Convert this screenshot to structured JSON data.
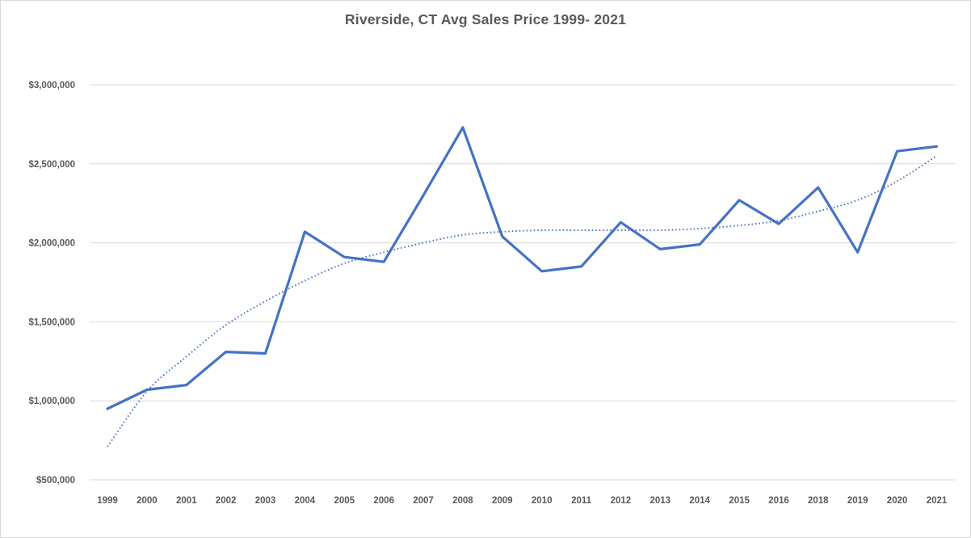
{
  "chart": {
    "title": "Riverside, CT Avg Sales Price 1999- 2021",
    "colors": {
      "line": "#4472C4",
      "trendline": "#4472C4",
      "gridline": "#d9d9d9",
      "border": "#d9d9d9",
      "text": "#595959",
      "background": "#ffffff"
    }
  },
  "chart_data": {
    "type": "line",
    "title": "Riverside, CT Avg Sales Price 1999- 2021",
    "xlabel": "",
    "ylabel": "",
    "ylim": [
      500000,
      3000000
    ],
    "ytick_interval": 500000,
    "ytick_values": [
      500000,
      1000000,
      1500000,
      2000000,
      2500000,
      3000000
    ],
    "ytick_labels": [
      "$500,000",
      "$1,000,000",
      "$1,500,000",
      "$2,000,000",
      "$2,500,000",
      "$3,000,000"
    ],
    "grid": true,
    "legend": false,
    "note_missing_year": "2017 is absent from the category axis",
    "categories": [
      "1999",
      "2000",
      "2001",
      "2002",
      "2003",
      "2004",
      "2005",
      "2006",
      "2007",
      "2008",
      "2009",
      "2010",
      "2011",
      "2012",
      "2013",
      "2014",
      "2015",
      "2016",
      "2018",
      "2019",
      "2020",
      "2021"
    ],
    "series": [
      {
        "name": "Avg Sales Price",
        "style": "solid",
        "values": [
          950000,
          1070000,
          1100000,
          1310000,
          1300000,
          2070000,
          1910000,
          1880000,
          2300000,
          2730000,
          2040000,
          1820000,
          1850000,
          2130000,
          1960000,
          1990000,
          2270000,
          2120000,
          2350000,
          1940000,
          2580000,
          2610000
        ]
      },
      {
        "name": "Trendline",
        "style": "dotted",
        "values": [
          710000,
          1060000,
          1280000,
          1480000,
          1630000,
          1760000,
          1870000,
          1940000,
          2000000,
          2050000,
          2070000,
          2080000,
          2080000,
          2080000,
          2080000,
          2090000,
          2110000,
          2140000,
          2200000,
          2270000,
          2390000,
          2550000
        ]
      }
    ]
  }
}
